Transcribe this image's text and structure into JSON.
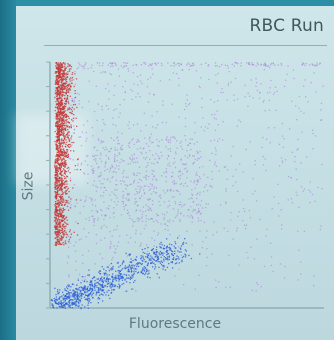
{
  "chart_data": {
    "type": "scatter",
    "title": "RBC Run",
    "xlabel": "Fluorescence",
    "ylabel": "Size",
    "xlim": [
      0,
      1
    ],
    "ylim": [
      0,
      1
    ],
    "grid": false,
    "series": [
      {
        "color": "#c43a3a",
        "cluster": "red",
        "x_range": [
          0.0,
          0.09
        ],
        "y_range": [
          0.25,
          1.0
        ],
        "count": 1600
      },
      {
        "color": "#2e5fd6",
        "cluster": "blue",
        "x_range": [
          0.0,
          0.55
        ],
        "y_range": [
          0.0,
          0.3
        ],
        "count": 900
      },
      {
        "color": "#a67ad6",
        "cluster": "purple",
        "x_range": [
          0.05,
          1.0
        ],
        "y_range": [
          0.05,
          1.0
        ],
        "count": 1400
      }
    ]
  },
  "colors": {
    "panel": "#c6e0e5",
    "axis": "#8fb0b6",
    "text": "#41575c"
  }
}
